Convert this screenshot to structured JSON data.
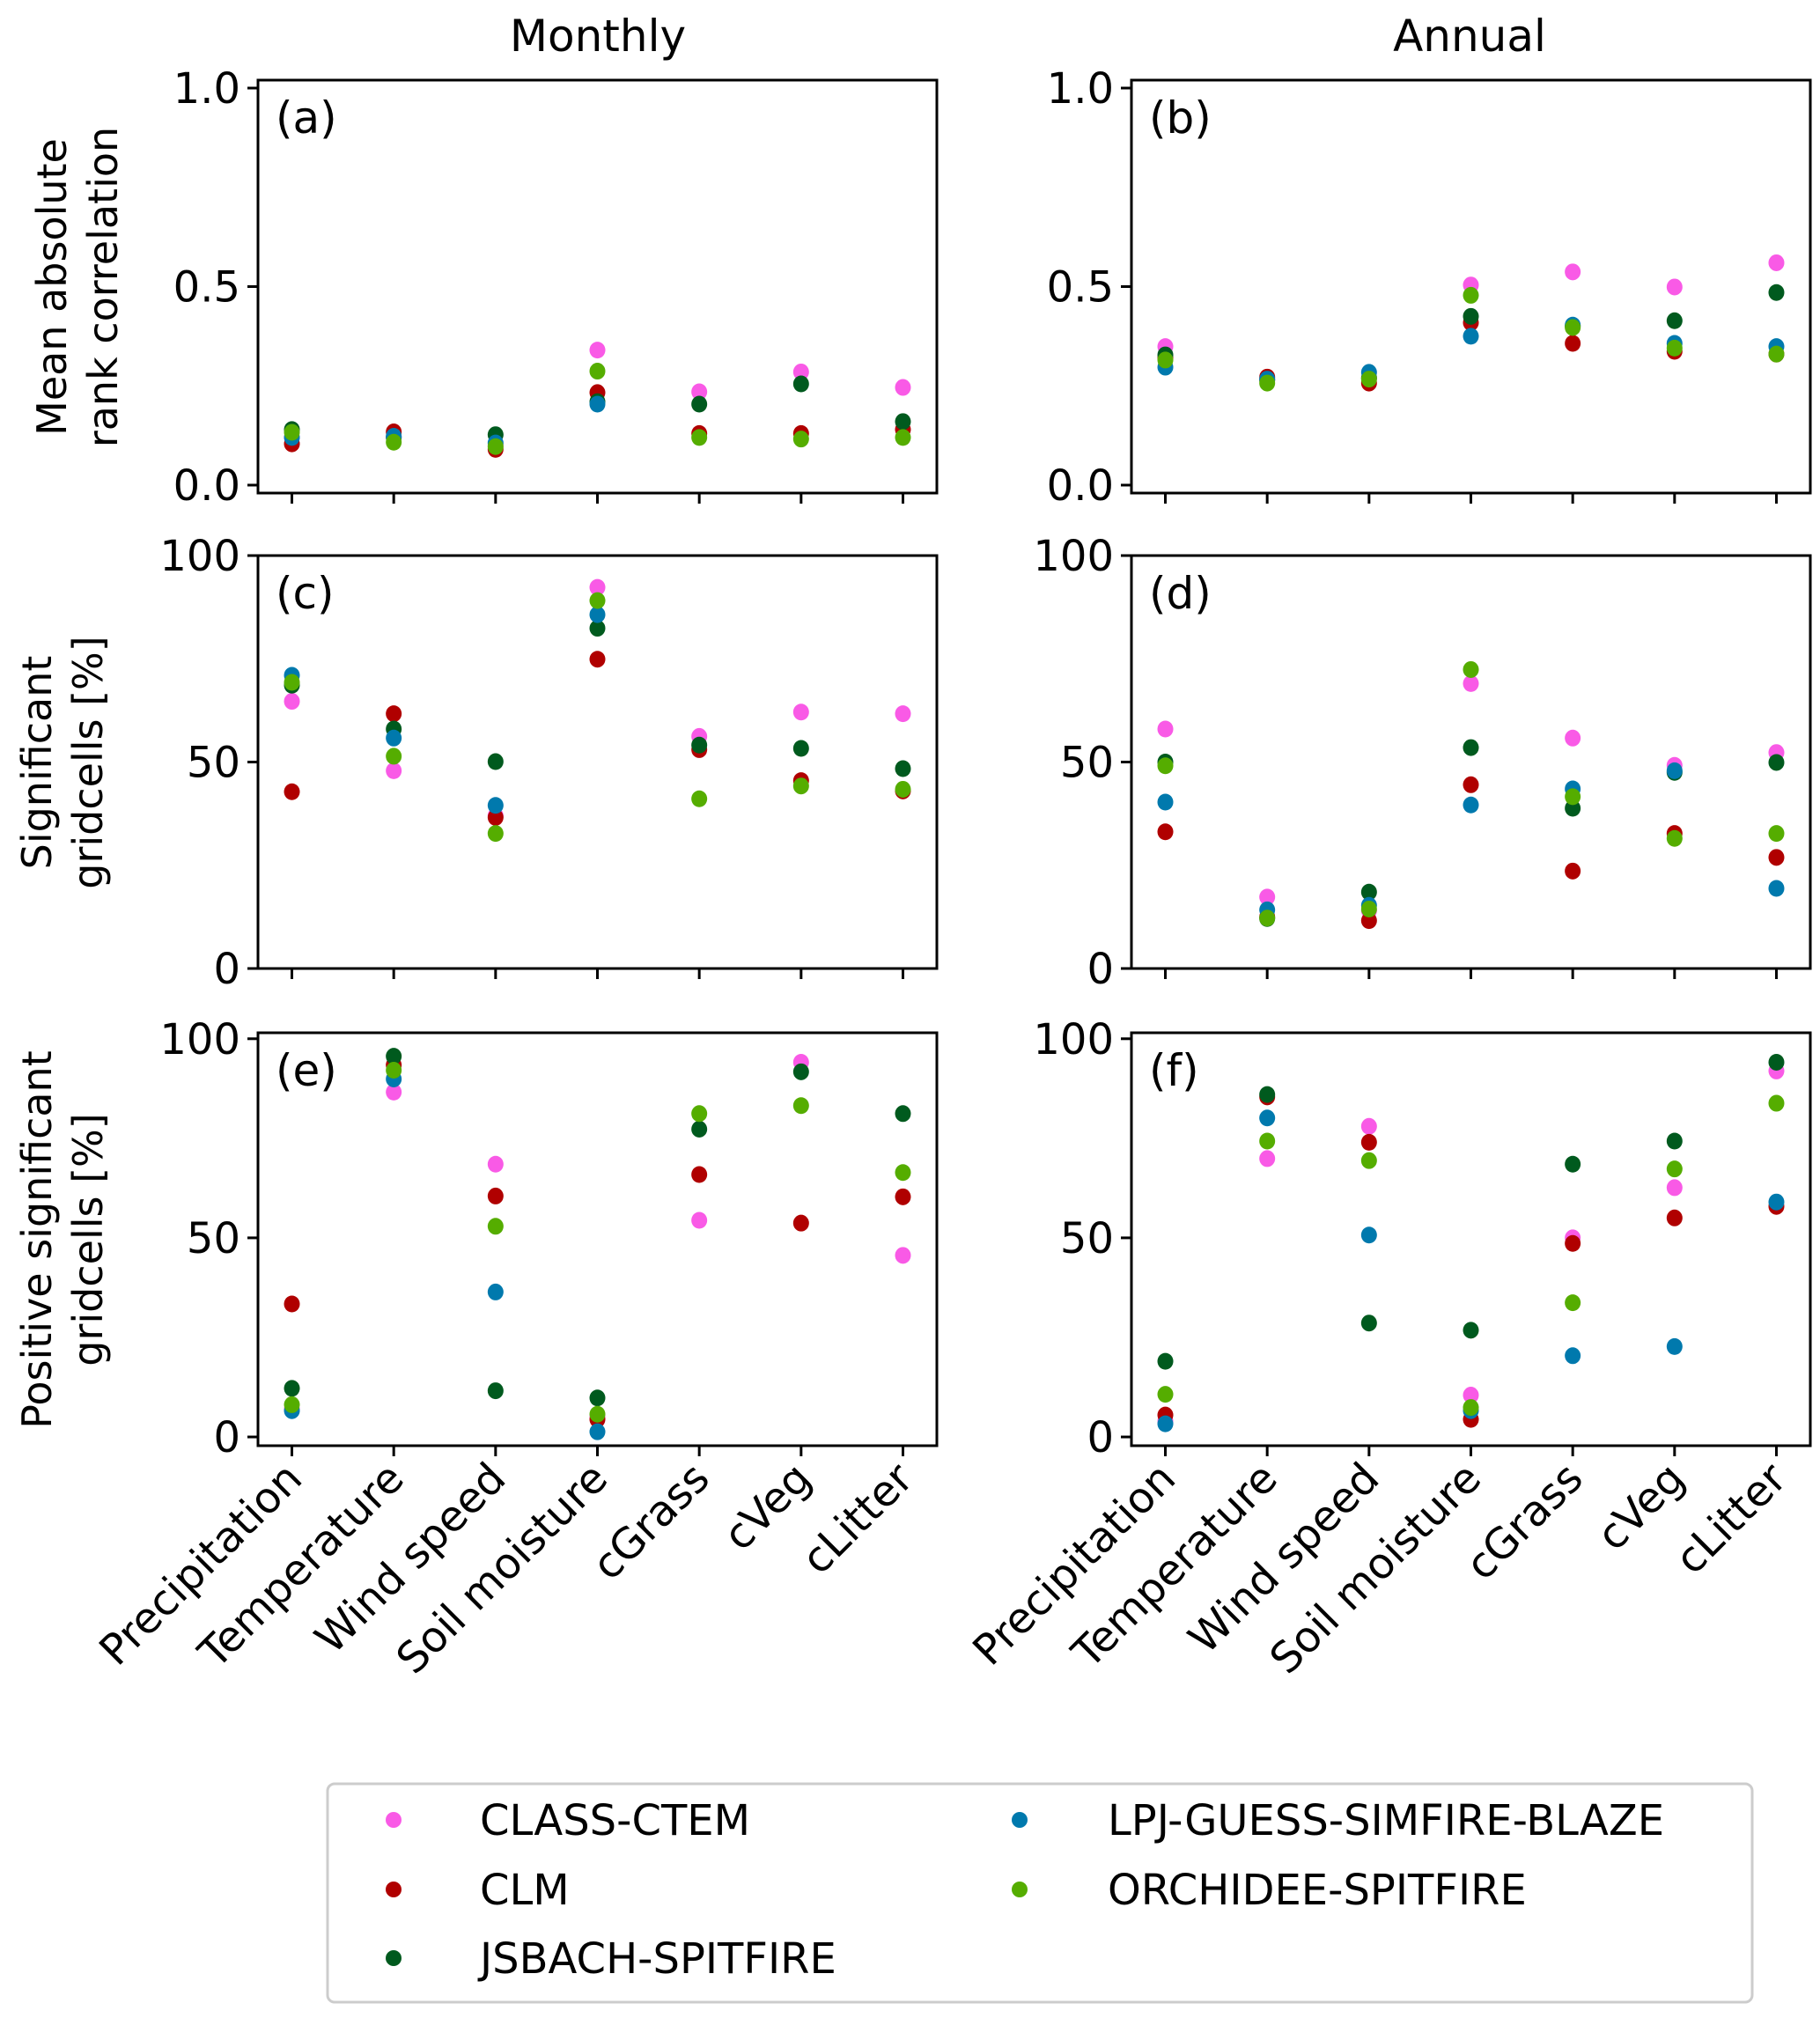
{
  "columns": [
    "Monthly",
    "Annual"
  ],
  "row_ylabels": [
    [
      "Mean absolute",
      "rank correlation"
    ],
    [
      "Significant",
      "gridcells [%]"
    ],
    [
      "Positive significant",
      "gridcells [%]"
    ]
  ],
  "legend": {
    "placement": "bottom",
    "entries": [
      {
        "name": "CLASS-CTEM",
        "color": "#f95ae6"
      },
      {
        "name": "CLM",
        "color": "#b00000"
      },
      {
        "name": "JSBACH-SPITFIRE",
        "color": "#005a1e"
      },
      {
        "name": "LPJ-GUESS-SIMFIRE-BLAZE",
        "color": "#0079ad"
      },
      {
        "name": "ORCHIDEE-SPITFIRE",
        "color": "#55ad00"
      }
    ]
  },
  "chart_data": [
    {
      "panel": "(a)",
      "type": "scatter",
      "column": "Monthly",
      "categories": [
        "Precipitation",
        "Temperature",
        "Wind speed",
        "Soil moisture",
        "cGrass",
        "cVeg",
        "cLitter"
      ],
      "ylim": [
        -0.02,
        1.02
      ],
      "yticks": [
        "0.0",
        "0.5",
        "1.0"
      ],
      "ytick_values": [
        0,
        0.5,
        1.0
      ],
      "series": [
        {
          "name": "CLASS-CTEM",
          "values": [
            0.12,
            0.12,
            0.1,
            0.34,
            0.235,
            0.285,
            0.246
          ]
        },
        {
          "name": "CLM",
          "values": [
            0.104,
            0.134,
            0.09,
            0.233,
            0.13,
            0.13,
            0.14
          ]
        },
        {
          "name": "JSBACH-SPITFIRE",
          "values": [
            0.14,
            0.12,
            0.127,
            0.21,
            0.204,
            0.255,
            0.16
          ]
        },
        {
          "name": "LPJ-GUESS-SIMFIRE-BLAZE",
          "values": [
            0.12,
            0.123,
            0.106,
            0.204,
            null,
            null,
            null
          ]
        },
        {
          "name": "ORCHIDEE-SPITFIRE",
          "values": [
            0.133,
            0.108,
            0.097,
            0.287,
            0.12,
            0.116,
            0.12
          ]
        }
      ]
    },
    {
      "panel": "(b)",
      "type": "scatter",
      "column": "Annual",
      "categories": [
        "Precipitation",
        "Temperature",
        "Wind speed",
        "Soil moisture",
        "cGrass",
        "cVeg",
        "cLitter"
      ],
      "ylim": [
        -0.02,
        1.02
      ],
      "yticks": [
        "0.0",
        "0.5",
        "1.0"
      ],
      "ytick_values": [
        0,
        0.5,
        1.0
      ],
      "series": [
        {
          "name": "CLASS-CTEM",
          "values": [
            0.349,
            0.265,
            0.27,
            0.504,
            0.537,
            0.499,
            0.56
          ]
        },
        {
          "name": "CLM",
          "values": [
            0.32,
            0.272,
            0.257,
            0.409,
            0.357,
            0.337,
            0.33
          ]
        },
        {
          "name": "JSBACH-SPITFIRE",
          "values": [
            0.328,
            0.265,
            0.27,
            0.425,
            0.4,
            0.414,
            0.485
          ]
        },
        {
          "name": "LPJ-GUESS-SIMFIRE-BLAZE",
          "values": [
            0.297,
            0.267,
            0.284,
            0.375,
            0.403,
            0.357,
            0.349
          ]
        },
        {
          "name": "ORCHIDEE-SPITFIRE",
          "values": [
            0.315,
            0.257,
            0.267,
            0.478,
            0.397,
            0.345,
            0.33
          ]
        }
      ]
    },
    {
      "panel": "(c)",
      "type": "scatter",
      "column": "Monthly",
      "categories": [
        "Precipitation",
        "Temperature",
        "Wind speed",
        "Soil moisture",
        "cGrass",
        "cVeg",
        "cLitter"
      ],
      "ylim": [
        0,
        100
      ],
      "yticks": [
        "0",
        "50",
        "100"
      ],
      "ytick_values": [
        0,
        50,
        100
      ],
      "series": [
        {
          "name": "CLASS-CTEM",
          "values": [
            64.7,
            47.9,
            37,
            92.3,
            56.2,
            62.1,
            61.7
          ]
        },
        {
          "name": "CLM",
          "values": [
            42.8,
            61.7,
            36.6,
            74.9,
            53,
            45.5,
            43
          ]
        },
        {
          "name": "JSBACH-SPITFIRE",
          "values": [
            68.6,
            58,
            50.1,
            82.4,
            54.1,
            53.3,
            48.4
          ]
        },
        {
          "name": "LPJ-GUESS-SIMFIRE-BLAZE",
          "values": [
            71,
            55.8,
            39.5,
            85.7,
            null,
            null,
            null
          ]
        },
        {
          "name": "ORCHIDEE-SPITFIRE",
          "values": [
            69.3,
            51.4,
            32.7,
            89.1,
            41.1,
            44.2,
            43.4
          ]
        }
      ]
    },
    {
      "panel": "(d)",
      "type": "scatter",
      "column": "Annual",
      "categories": [
        "Precipitation",
        "Temperature",
        "Wind speed",
        "Soil moisture",
        "cGrass",
        "cVeg",
        "cLitter"
      ],
      "ylim": [
        0,
        100
      ],
      "yticks": [
        "0",
        "50",
        "100"
      ],
      "ytick_values": [
        0,
        50,
        100
      ],
      "series": [
        {
          "name": "CLASS-CTEM",
          "values": [
            58,
            17.3,
            14,
            69,
            55.8,
            49.2,
            52.3
          ]
        },
        {
          "name": "CLM",
          "values": [
            33.1,
            12.5,
            11.6,
            44.5,
            23.6,
            32.7,
            26.9
          ]
        },
        {
          "name": "JSBACH-SPITFIRE",
          "values": [
            50,
            12.1,
            18.5,
            53.5,
            38.8,
            47.5,
            49.9
          ]
        },
        {
          "name": "LPJ-GUESS-SIMFIRE-BLAZE",
          "values": [
            40.3,
            14.2,
            15.3,
            39.6,
            43.5,
            47.9,
            19.4
          ]
        },
        {
          "name": "ORCHIDEE-SPITFIRE",
          "values": [
            49.1,
            12.2,
            14.4,
            72.4,
            41.6,
            31.5,
            32.7
          ]
        }
      ]
    },
    {
      "panel": "(e)",
      "type": "scatter",
      "column": "Monthly",
      "categories": [
        "Precipitation",
        "Temperature",
        "Wind speed",
        "Soil moisture",
        "cGrass",
        "cVeg",
        "cLitter"
      ],
      "ylim": [
        -2.2,
        101.5
      ],
      "yticks": [
        "0",
        "50",
        "100"
      ],
      "ytick_values": [
        0,
        50,
        100
      ],
      "series": [
        {
          "name": "CLASS-CTEM",
          "values": [
            7,
            86.6,
            68.5,
            5,
            54.4,
            94.1,
            45.6
          ]
        },
        {
          "name": "CLM",
          "values": [
            33.4,
            93.4,
            60.5,
            4.4,
            65.9,
            53.7,
            60.3
          ]
        },
        {
          "name": "JSBACH-SPITFIRE",
          "values": [
            12.2,
            95.6,
            11.6,
            9.8,
            77.3,
            91.7,
            81.2
          ]
        },
        {
          "name": "LPJ-GUESS-SIMFIRE-BLAZE",
          "values": [
            6.6,
            89.9,
            36.4,
            1.3,
            null,
            null,
            null
          ]
        },
        {
          "name": "ORCHIDEE-SPITFIRE",
          "values": [
            8.1,
            92.1,
            52.9,
            5.7,
            81.2,
            83.2,
            66.4
          ]
        }
      ]
    },
    {
      "panel": "(f)",
      "type": "scatter",
      "column": "Annual",
      "categories": [
        "Precipitation",
        "Temperature",
        "Wind speed",
        "Soil moisture",
        "cGrass",
        "cVeg",
        "cLitter"
      ],
      "ylim": [
        -2.2,
        101.5
      ],
      "yticks": [
        "0",
        "50",
        "100"
      ],
      "ytick_values": [
        0,
        50,
        100
      ],
      "series": [
        {
          "name": "CLASS-CTEM",
          "values": [
            4,
            69.9,
            78,
            10.5,
            50,
            62.6,
            91.9
          ]
        },
        {
          "name": "CLM",
          "values": [
            5.5,
            85.4,
            74,
            4.4,
            48.6,
            55,
            57.9
          ]
        },
        {
          "name": "JSBACH-SPITFIRE",
          "values": [
            19,
            86,
            28.6,
            26.8,
            68.5,
            74.3,
            94.1
          ]
        },
        {
          "name": "LPJ-GUESS-SIMFIRE-BLAZE",
          "values": [
            3.3,
            80.1,
            50.7,
            6.6,
            20.4,
            22.7,
            59
          ]
        },
        {
          "name": "ORCHIDEE-SPITFIRE",
          "values": [
            10.7,
            74.3,
            69.4,
            7.4,
            33.7,
            67.3,
            83.8
          ]
        }
      ]
    }
  ]
}
